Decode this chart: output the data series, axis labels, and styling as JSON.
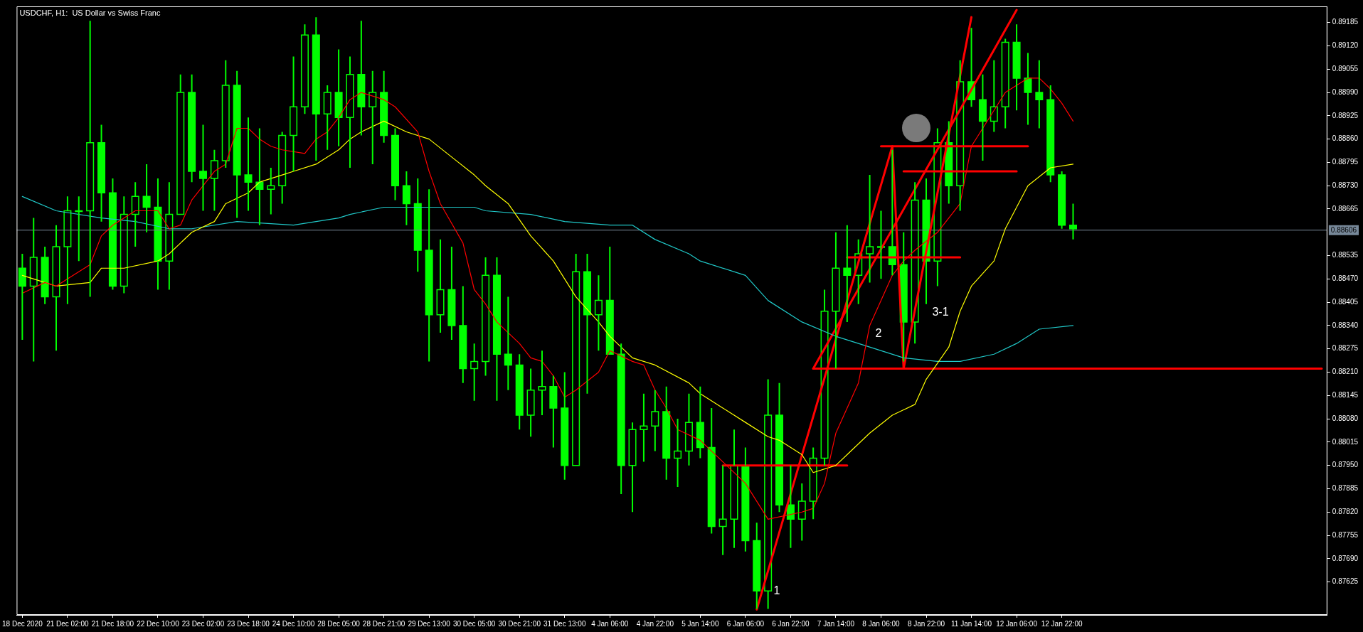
{
  "chart_data": {
    "type": "candlestick",
    "title": "USDCHF, H1:  US Dollar vs Swiss Franc",
    "color": "#00ff00",
    "categories": [
      "18 Dec 2020",
      null,
      null,
      null,
      "21 Dec 02:00",
      null,
      null,
      null,
      "21 Dec 18:00",
      null,
      null,
      null,
      "22 Dec 10:00",
      null,
      null,
      null,
      "23 Dec 02:00",
      null,
      null,
      null,
      "23 Dec 18:00",
      null,
      null,
      null,
      "24 Dec 10:00",
      null,
      null,
      null,
      "28 Dec 05:00",
      null,
      null,
      null,
      "28 Dec 21:00",
      null,
      null,
      null,
      "29 Dec 13:00",
      null,
      null,
      null,
      "30 Dec 05:00",
      null,
      null,
      null,
      "30 Dec 21:00",
      null,
      null,
      null,
      "31 Dec 13:00",
      null,
      null,
      null,
      "4 Jan 06:00",
      null,
      null,
      null,
      "4 Jan 22:00",
      null,
      null,
      null,
      "5 Jan 14:00",
      null,
      null,
      null,
      "6 Jan 06:00",
      null,
      null,
      null,
      "6 Jan 22:00",
      null,
      null,
      null,
      "7 Jan 14:00",
      null,
      null,
      null,
      "8 Jan 06:00",
      null,
      null,
      null,
      "8 Jan 22:00",
      null,
      null,
      null,
      "11 Jan 14:00",
      null,
      null,
      null,
      "12 Jan 06:00",
      null,
      null,
      null,
      "12 Jan 22:00",
      null,
      null,
      null,
      null,
      null,
      null,
      null,
      null,
      null,
      null,
      null,
      null,
      null,
      null,
      null,
      null,
      null,
      null,
      null,
      null,
      null,
      null,
      null
    ],
    "ohlc": [
      [
        0.885,
        0.8854,
        0.883,
        0.8845
      ],
      [
        0.8845,
        0.8864,
        0.8824,
        0.8853
      ],
      [
        0.8853,
        0.8856,
        0.884,
        0.8842
      ],
      [
        0.8842,
        0.8862,
        0.8827,
        0.8856
      ],
      [
        0.8856,
        0.887,
        0.884,
        0.8866
      ],
      [
        0.8866,
        0.887,
        0.8852,
        0.8866
      ],
      [
        0.8866,
        0.8919,
        0.8842,
        0.8885
      ],
      [
        0.8885,
        0.889,
        0.8863,
        0.8871
      ],
      [
        0.8871,
        0.8875,
        0.8844,
        0.8845
      ],
      [
        0.8845,
        0.887,
        0.8843,
        0.8865
      ],
      [
        0.8865,
        0.8874,
        0.8856,
        0.887
      ],
      [
        0.887,
        0.8879,
        0.886,
        0.8867
      ],
      [
        0.8867,
        0.8875,
        0.8844,
        0.8852
      ],
      [
        0.8852,
        0.8874,
        0.8844,
        0.8865
      ],
      [
        0.8865,
        0.8904,
        0.8865,
        0.8899
      ],
      [
        0.8899,
        0.8904,
        0.8874,
        0.8877
      ],
      [
        0.8877,
        0.889,
        0.8866,
        0.8875
      ],
      [
        0.8875,
        0.8883,
        0.8866,
        0.888
      ],
      [
        0.888,
        0.8908,
        0.8878,
        0.8901
      ],
      [
        0.8901,
        0.8905,
        0.8864,
        0.8876
      ],
      [
        0.8876,
        0.8892,
        0.8866,
        0.8874
      ],
      [
        0.8874,
        0.8889,
        0.8862,
        0.8872
      ],
      [
        0.8872,
        0.8878,
        0.8865,
        0.8873
      ],
      [
        0.8873,
        0.8888,
        0.8868,
        0.8887
      ],
      [
        0.8887,
        0.8909,
        0.8877,
        0.8895
      ],
      [
        0.8895,
        0.8918,
        0.8893,
        0.8915
      ],
      [
        0.8915,
        0.892,
        0.888,
        0.8893
      ],
      [
        0.8893,
        0.8901,
        0.8883,
        0.8899
      ],
      [
        0.8899,
        0.8911,
        0.8884,
        0.8892
      ],
      [
        0.8892,
        0.8909,
        0.8878,
        0.8904
      ],
      [
        0.8904,
        0.8919,
        0.8887,
        0.8895
      ],
      [
        0.8895,
        0.8905,
        0.8879,
        0.8899
      ],
      [
        0.8899,
        0.8905,
        0.8885,
        0.8887
      ],
      [
        0.8887,
        0.8889,
        0.8869,
        0.8873
      ],
      [
        0.8873,
        0.8877,
        0.8862,
        0.8868
      ],
      [
        0.8868,
        0.8875,
        0.8849,
        0.8855
      ],
      [
        0.8855,
        0.8872,
        0.8824,
        0.8837
      ],
      [
        0.8837,
        0.8858,
        0.8832,
        0.8844
      ],
      [
        0.8844,
        0.8856,
        0.883,
        0.8834
      ],
      [
        0.8834,
        0.8845,
        0.8818,
        0.8822
      ],
      [
        0.8822,
        0.8829,
        0.8813,
        0.8824
      ],
      [
        0.8824,
        0.8853,
        0.882,
        0.8848
      ],
      [
        0.8848,
        0.8853,
        0.8813,
        0.8826
      ],
      [
        0.8826,
        0.8842,
        0.8816,
        0.8823
      ],
      [
        0.8823,
        0.8826,
        0.8805,
        0.8809
      ],
      [
        0.8809,
        0.8822,
        0.8803,
        0.8816
      ],
      [
        0.8816,
        0.8827,
        0.8809,
        0.8817
      ],
      [
        0.8817,
        0.882,
        0.88,
        0.8811
      ],
      [
        0.8811,
        0.8821,
        0.8791,
        0.8795
      ],
      [
        0.8795,
        0.8854,
        0.8795,
        0.8849
      ],
      [
        0.8849,
        0.8854,
        0.8815,
        0.8837
      ],
      [
        0.8837,
        0.8848,
        0.8827,
        0.8841
      ],
      [
        0.8841,
        0.8856,
        0.8826,
        0.8826
      ],
      [
        0.8826,
        0.8829,
        0.8787,
        0.8795
      ],
      [
        0.8795,
        0.8807,
        0.8782,
        0.8805
      ],
      [
        0.8805,
        0.8815,
        0.8796,
        0.8806
      ],
      [
        0.8806,
        0.8816,
        0.8799,
        0.881
      ],
      [
        0.881,
        0.8817,
        0.8791,
        0.8797
      ],
      [
        0.8797,
        0.8808,
        0.8789,
        0.8799
      ],
      [
        0.8799,
        0.8815,
        0.8795,
        0.8807
      ],
      [
        0.8807,
        0.8817,
        0.8797,
        0.88
      ],
      [
        0.88,
        0.8811,
        0.8776,
        0.8778
      ],
      [
        0.8778,
        0.8795,
        0.877,
        0.878
      ],
      [
        0.878,
        0.8805,
        0.8772,
        0.8795
      ],
      [
        0.8795,
        0.88,
        0.8771,
        0.8774
      ],
      [
        0.8774,
        0.8779,
        0.8755,
        0.876
      ],
      [
        0.876,
        0.8819,
        0.8755,
        0.8809
      ],
      [
        0.8809,
        0.8818,
        0.8782,
        0.8784
      ],
      [
        0.8784,
        0.8795,
        0.8772,
        0.878
      ],
      [
        0.878,
        0.879,
        0.8774,
        0.8785
      ],
      [
        0.8785,
        0.88,
        0.878,
        0.8797
      ],
      [
        0.8797,
        0.8844,
        0.8795,
        0.8838
      ],
      [
        0.8838,
        0.886,
        0.8822,
        0.885
      ],
      [
        0.885,
        0.8862,
        0.8835,
        0.8848
      ],
      [
        0.8848,
        0.8858,
        0.884,
        0.8854
      ],
      [
        0.8854,
        0.8876,
        0.8846,
        0.8856
      ],
      [
        0.8856,
        0.8866,
        0.8847,
        0.8856
      ],
      [
        0.8856,
        0.8883,
        0.8848,
        0.8851
      ],
      [
        0.8851,
        0.886,
        0.8824,
        0.8835
      ],
      [
        0.8835,
        0.8874,
        0.8829,
        0.8869
      ],
      [
        0.8869,
        0.8875,
        0.884,
        0.8852
      ],
      [
        0.8852,
        0.8889,
        0.8845,
        0.8885
      ],
      [
        0.8885,
        0.8891,
        0.8868,
        0.8873
      ],
      [
        0.8873,
        0.8908,
        0.8866,
        0.8902
      ],
      [
        0.8902,
        0.8917,
        0.8895,
        0.8897
      ],
      [
        0.8897,
        0.8904,
        0.888,
        0.8891
      ],
      [
        0.8891,
        0.8908,
        0.8888,
        0.8895
      ],
      [
        0.8895,
        0.8914,
        0.8889,
        0.8913
      ],
      [
        0.8913,
        0.8918,
        0.8894,
        0.8903
      ],
      [
        0.8903,
        0.891,
        0.889,
        0.8899
      ],
      [
        0.8899,
        0.8908,
        0.8889,
        0.8897
      ],
      [
        0.8897,
        0.8901,
        0.8874,
        0.8876
      ],
      [
        0.8876,
        0.8877,
        0.8861,
        0.8862
      ],
      [
        0.8862,
        0.8868,
        0.8858,
        0.8861
      ],
      null,
      null,
      null,
      null,
      null,
      null,
      null,
      null,
      null,
      null,
      null,
      null,
      null,
      null,
      null,
      null,
      null,
      null,
      null,
      null,
      null,
      null
    ],
    "series": [
      {
        "type": "line",
        "color": "#ff0000",
        "values": [
          0.8843,
          null,
          0.8846,
          0.8845,
          0.8847,
          null,
          0.8851,
          0.8859,
          0.8862,
          null,
          0.8866,
          null,
          0.8866,
          0.8861,
          0.8862,
          0.8869,
          null,
          0.8877,
          0.8879,
          0.8889,
          0.8889,
          0.8886,
          0.8884,
          0.8883,
          null,
          0.8882,
          0.8886,
          0.8888,
          0.8892,
          0.8897,
          0.8899,
          null,
          0.8897,
          0.8895,
          null,
          0.8888,
          0.8877,
          0.8868,
          null,
          0.8857,
          0.8844,
          0.884,
          0.8835,
          null,
          0.8829,
          0.8825,
          0.8824,
          0.882,
          0.8814,
          0.8816,
          null,
          0.8821,
          0.8827,
          null,
          0.8824,
          0.8823,
          0.8816,
          0.8811,
          0.8805,
          null,
          0.8802,
          null,
          0.8796,
          null,
          0.879,
          null,
          0.878,
          null,
          null,
          0.8782,
          0.8783,
          0.879,
          0.8804,
          null,
          0.8818,
          0.8834,
          null,
          0.8848,
          0.8852,
          0.8855,
          null,
          0.886,
          null,
          0.8868,
          0.8884,
          null,
          0.8894,
          0.8899,
          null,
          0.8903,
          0.8903,
          0.89,
          0.8896,
          0.8891,
          null,
          null,
          null,
          null,
          null,
          null,
          null,
          null,
          null,
          null,
          null,
          null,
          null,
          null,
          null,
          null,
          null,
          null,
          null,
          null,
          null,
          null
        ]
      },
      {
        "type": "line",
        "color": "#ffff00",
        "values": [
          0.8848,
          null,
          0.8846,
          0.8845,
          null,
          null,
          0.8846,
          0.885,
          null,
          0.885,
          null,
          null,
          0.8852,
          0.8854,
          null,
          0.886,
          null,
          0.8863,
          0.8868,
          null,
          0.8871,
          0.8874,
          null,
          0.8876,
          0.8877,
          null,
          0.8879,
          null,
          0.8883,
          0.8886,
          0.8888,
          null,
          0.8891,
          null,
          0.8888,
          null,
          0.8886,
          null,
          0.8881,
          null,
          0.8876,
          0.8873,
          null,
          0.8868,
          null,
          0.8859,
          null,
          0.8852,
          null,
          0.8842,
          null,
          0.8835,
          0.8831,
          null,
          0.8825,
          null,
          0.8823,
          null,
          null,
          0.8818,
          0.8815,
          null,
          0.8811,
          null,
          0.8807,
          null,
          0.8803,
          0.8802,
          null,
          0.8798,
          0.8793,
          null,
          0.8795,
          0.8798,
          null,
          0.8804,
          null,
          0.8809,
          null,
          0.8812,
          0.8819,
          null,
          0.8828,
          0.8838,
          0.8845,
          null,
          0.8852,
          0.8861,
          0.8867,
          0.8873,
          null,
          0.8878,
          null,
          0.8879,
          null,
          null,
          null,
          null,
          null,
          null,
          null,
          null,
          null,
          null,
          null,
          null,
          null,
          null,
          null,
          null,
          null,
          null,
          null,
          null,
          null,
          null
        ]
      },
      {
        "type": "line",
        "color": "#20c8c8",
        "values": [
          0.887,
          null,
          null,
          0.8866,
          null,
          null,
          null,
          0.8864,
          null,
          null,
          0.8863,
          null,
          null,
          0.8861,
          null,
          0.8861,
          null,
          null,
          null,
          0.8863,
          null,
          null,
          null,
          null,
          0.8862,
          null,
          null,
          null,
          0.8864,
          0.8865,
          null,
          null,
          0.8867,
          null,
          null,
          null,
          0.8867,
          null,
          null,
          null,
          0.8867,
          0.8866,
          null,
          null,
          null,
          0.8865,
          null,
          null,
          0.8863,
          null,
          null,
          null,
          0.8862,
          null,
          0.8862,
          null,
          0.8858,
          null,
          null,
          0.8854,
          0.8852,
          null,
          null,
          null,
          0.8848,
          null,
          0.8841,
          null,
          null,
          0.8835,
          null,
          null,
          0.8831,
          null,
          0.8829,
          null,
          null,
          null,
          0.8825,
          null,
          null,
          0.8824,
          null,
          0.8824,
          null,
          null,
          0.8826,
          null,
          0.8829,
          null,
          0.8833,
          null,
          null,
          0.8834,
          null,
          null,
          null,
          null,
          null,
          null,
          null,
          null,
          null,
          null,
          null,
          null,
          null,
          null,
          null,
          null,
          null,
          null,
          null,
          null,
          null,
          null
        ]
      },
      {
        "type": "line",
        "color": "#ff0000",
        "values": [
          null,
          null,
          null,
          null,
          null,
          null,
          null,
          null,
          null,
          null,
          null,
          null,
          null,
          null,
          null,
          null,
          null,
          null,
          null,
          null,
          null,
          null,
          null,
          null,
          null,
          null,
          null,
          null,
          null,
          null,
          null,
          null,
          null,
          null,
          null,
          null,
          null,
          null,
          null,
          null,
          null,
          null,
          null,
          null,
          null,
          null,
          null,
          null,
          null,
          null,
          null,
          null,
          null,
          null,
          null,
          null,
          null,
          null,
          null,
          null,
          null,
          null,
          null,
          null,
          null,
          0.87548,
          null,
          null,
          null,
          null,
          null,
          null,
          null,
          null,
          null,
          null,
          null,
          0.8884,
          0.8822,
          null,
          null,
          null,
          null,
          null,
          0.892,
          null,
          null,
          null,
          null,
          null,
          null,
          null,
          null,
          null,
          null,
          null,
          null,
          null,
          null,
          null,
          null,
          null,
          null,
          null,
          null,
          null,
          null,
          null,
          null,
          null,
          null,
          null,
          null,
          null,
          null,
          null
        ]
      },
      {
        "type": "line",
        "color": "#ff0000",
        "values": [
          null,
          null,
          null,
          null,
          null,
          null,
          null,
          null,
          null,
          null,
          null,
          null,
          null,
          null,
          null,
          null,
          null,
          null,
          null,
          null,
          null,
          null,
          null,
          null,
          null,
          null,
          null,
          null,
          null,
          null,
          null,
          null,
          null,
          null,
          null,
          null,
          null,
          null,
          null,
          null,
          null,
          null,
          null,
          null,
          null,
          null,
          null,
          null,
          null,
          null,
          null,
          null,
          null,
          null,
          null,
          null,
          null,
          null,
          null,
          null,
          null,
          null,
          0.8795,
          null,
          null,
          null,
          null,
          null,
          null,
          null,
          null,
          null,
          null,
          0.8795,
          null,
          null,
          null,
          null,
          null,
          null,
          null,
          null,
          null,
          null,
          null,
          null,
          null,
          null,
          null,
          null,
          null,
          null,
          null,
          null,
          null,
          null,
          null,
          null,
          null,
          null,
          null,
          null,
          null,
          null,
          null,
          null,
          null,
          null,
          null,
          null,
          null,
          null,
          null,
          null,
          null,
          null
        ]
      },
      {
        "type": "line",
        "color": "#ff0000",
        "values": [
          null,
          null,
          null,
          null,
          null,
          null,
          null,
          null,
          null,
          null,
          null,
          null,
          null,
          null,
          null,
          null,
          null,
          null,
          null,
          null,
          null,
          null,
          null,
          null,
          null,
          null,
          null,
          null,
          null,
          null,
          null,
          null,
          null,
          null,
          null,
          null,
          null,
          null,
          null,
          null,
          null,
          null,
          null,
          null,
          null,
          null,
          null,
          null,
          null,
          null,
          null,
          null,
          null,
          null,
          null,
          null,
          null,
          null,
          null,
          null,
          null,
          null,
          null,
          null,
          null,
          null,
          null,
          null,
          null,
          null,
          0.8822,
          null,
          null,
          null,
          null,
          null,
          null,
          null,
          null,
          null,
          null,
          null,
          null,
          null,
          null,
          null,
          null,
          null,
          null,
          null,
          null,
          null,
          null,
          null,
          null,
          null,
          null,
          null,
          null,
          null,
          null,
          null,
          null,
          null,
          null,
          null,
          null,
          null,
          null,
          null,
          null,
          null,
          null,
          null,
          null,
          0.8822
        ]
      },
      {
        "type": "line",
        "color": "#ff0000",
        "values": [
          null,
          null,
          null,
          null,
          null,
          null,
          null,
          null,
          null,
          null,
          null,
          null,
          null,
          null,
          null,
          null,
          null,
          null,
          null,
          null,
          null,
          null,
          null,
          null,
          null,
          null,
          null,
          null,
          null,
          null,
          null,
          null,
          null,
          null,
          null,
          null,
          null,
          null,
          null,
          null,
          null,
          null,
          null,
          null,
          null,
          null,
          null,
          null,
          null,
          null,
          null,
          null,
          null,
          null,
          null,
          null,
          null,
          null,
          null,
          null,
          null,
          null,
          null,
          null,
          null,
          null,
          null,
          null,
          null,
          null,
          null,
          null,
          null,
          0.8853,
          null,
          null,
          null,
          null,
          null,
          null,
          null,
          null,
          null,
          0.8853,
          null,
          null,
          null,
          null,
          null,
          null,
          null,
          null,
          null,
          null,
          null,
          null,
          null,
          null,
          null,
          null,
          null,
          null,
          null,
          null,
          null,
          null,
          null,
          null,
          null,
          null,
          null,
          null,
          null,
          null,
          null,
          null
        ]
      },
      {
        "type": "line",
        "color": "#ff0000",
        "values": [
          null,
          null,
          null,
          null,
          null,
          null,
          null,
          null,
          null,
          null,
          null,
          null,
          null,
          null,
          null,
          null,
          null,
          null,
          null,
          null,
          null,
          null,
          null,
          null,
          null,
          null,
          null,
          null,
          null,
          null,
          null,
          null,
          null,
          null,
          null,
          null,
          null,
          null,
          null,
          null,
          null,
          null,
          null,
          null,
          null,
          null,
          null,
          null,
          null,
          null,
          null,
          null,
          null,
          null,
          null,
          null,
          null,
          null,
          null,
          null,
          null,
          null,
          null,
          null,
          null,
          null,
          null,
          null,
          null,
          null,
          null,
          null,
          null,
          null,
          null,
          null,
          0.8884,
          null,
          null,
          null,
          null,
          null,
          null,
          null,
          null,
          null,
          null,
          null,
          null,
          0.8884,
          null,
          null,
          null,
          null,
          null,
          null,
          null,
          null,
          null,
          null,
          null,
          null,
          null,
          null,
          null,
          null,
          null,
          null,
          null,
          null,
          null,
          null,
          null,
          null,
          null,
          null
        ]
      },
      {
        "type": "line",
        "color": "#ff0000",
        "values": [
          null,
          null,
          null,
          null,
          null,
          null,
          null,
          null,
          null,
          null,
          null,
          null,
          null,
          null,
          null,
          null,
          null,
          null,
          null,
          null,
          null,
          null,
          null,
          null,
          null,
          null,
          null,
          null,
          null,
          null,
          null,
          null,
          null,
          null,
          null,
          null,
          null,
          null,
          null,
          null,
          null,
          null,
          null,
          null,
          null,
          null,
          null,
          null,
          null,
          null,
          null,
          null,
          null,
          null,
          null,
          null,
          null,
          null,
          null,
          null,
          null,
          null,
          null,
          null,
          null,
          null,
          null,
          null,
          null,
          null,
          null,
          null,
          null,
          null,
          null,
          null,
          null,
          null,
          0.8877,
          null,
          null,
          null,
          null,
          null,
          null,
          null,
          null,
          null,
          0.8877,
          null,
          null,
          null,
          null,
          null,
          null,
          null,
          null,
          null,
          null,
          null,
          null,
          null,
          null,
          null,
          null,
          null,
          null,
          null,
          null,
          null,
          null,
          null,
          null,
          null,
          null,
          null
        ]
      },
      {
        "type": "line",
        "color": "#ff0000",
        "values": [
          null,
          null,
          null,
          null,
          null,
          null,
          null,
          null,
          null,
          null,
          null,
          null,
          null,
          null,
          null,
          null,
          null,
          null,
          null,
          null,
          null,
          null,
          null,
          null,
          null,
          null,
          null,
          null,
          null,
          null,
          null,
          null,
          null,
          null,
          null,
          null,
          null,
          null,
          null,
          null,
          null,
          null,
          null,
          null,
          null,
          null,
          null,
          null,
          null,
          null,
          null,
          null,
          null,
          null,
          null,
          null,
          null,
          null,
          null,
          null,
          null,
          null,
          null,
          null,
          null,
          null,
          null,
          null,
          null,
          null,
          0.8822,
          null,
          null,
          null,
          null,
          null,
          null,
          null,
          null,
          null,
          null,
          null,
          null,
          null,
          null,
          null,
          null,
          null,
          0.8922,
          null,
          null,
          null,
          null,
          null,
          null,
          null,
          null,
          null,
          null,
          null,
          null,
          null,
          null,
          null,
          null,
          null,
          null,
          null,
          null,
          null,
          null,
          null,
          null,
          null,
          null,
          null
        ]
      }
    ],
    "ref_lines": [
      {
        "axis": "y",
        "value": 0.88606,
        "label": "0.88606",
        "color": "#778899"
      }
    ],
    "annotations": [
      "1",
      "2",
      "3-1"
    ],
    "ylim": [
      0.87533,
      0.8923
    ],
    "yticks": [
      0.89185,
      {
        "value": 0.8912,
        "label": "0.89120"
      },
      0.89055,
      {
        "value": 0.8899,
        "label": "0.88990"
      },
      0.88925,
      {
        "value": 0.8886,
        "label": "0.88860"
      },
      0.88795,
      {
        "value": 0.8873,
        "label": "0.88730"
      },
      0.88665,
      0.88535,
      {
        "value": 0.8847,
        "label": "0.88470"
      },
      0.88405,
      {
        "value": 0.8834,
        "label": "0.88340"
      },
      0.88275,
      {
        "value": 0.8821,
        "label": "0.88210"
      },
      0.88145,
      {
        "value": 0.8808,
        "label": "0.88080"
      },
      0.88015,
      {
        "value": 0.8795,
        "label": "0.87950"
      },
      0.87885,
      {
        "value": 0.8782,
        "label": "0.87820"
      },
      0.87755,
      {
        "value": 0.8769,
        "label": "0.87690"
      },
      0.87625
    ]
  }
}
